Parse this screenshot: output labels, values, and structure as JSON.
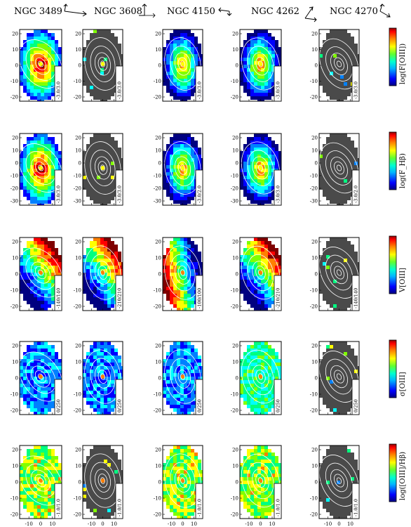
{
  "galaxies": [
    "NGC 3489",
    "NGC 3608",
    "NGC 4150",
    "NGC 4262",
    "NGC 4270"
  ],
  "quantity_labels": [
    "log(F[OIII])",
    "log(F_Hβ)",
    "V[OIII]",
    "σ[OIII]",
    "log([OIII]/Hβ)"
  ],
  "colors": {
    "masked": "#4a4a4a",
    "contour": "#ffffff",
    "frame": "#000000"
  },
  "colormap": [
    "#000080",
    "#0000ff",
    "#0080ff",
    "#00ffff",
    "#00ff80",
    "#80ff00",
    "#ffff00",
    "#ff8000",
    "#ff0000",
    "#800000"
  ],
  "chart_data": [
    {
      "type": "heatmap",
      "title": "",
      "columns": [
        "NGC 3489",
        "NGC 3608",
        "NGC 4150",
        "NGC 4262",
        "NGC 4270"
      ],
      "rows": [
        "log(F[OIII])",
        "log(F_Hβ)",
        "V[OIII]",
        "σ[OIII]",
        "log([OIII]/Hβ)"
      ],
      "range_labels": [
        [
          "-3.0/3.0",
          "-3.0/3.0",
          "-3.0/3.0",
          "-3.0/3.0",
          "-3.0/3.0"
        ],
        [
          "-3.0/3.0",
          "-3.0/3.0",
          "-3.0/2.0",
          "-3.0/3.0",
          "-3.0/2.0"
        ],
        [
          "-140/140",
          "-210/210",
          "-100/100",
          "-210/210",
          "-140/140"
        ],
        [
          "0/250",
          "0/250",
          "0/250",
          "0/250",
          "0/250"
        ],
        [
          "-1.0/1.0",
          "-1.0/1.0",
          "-1.0/1.0",
          "-1.0/1.0",
          "-1.0/1.0"
        ]
      ],
      "ylim": [
        [
          -30,
          20
        ],
        [
          -30,
          20
        ],
        [
          -20,
          20
        ],
        [
          -20,
          20
        ],
        [
          -20,
          20
        ]
      ],
      "yticks": [
        [
          "20",
          "10",
          "0",
          "-10",
          "-20"
        ],
        [
          "20",
          "10",
          "0",
          "-10",
          "-20",
          "-30"
        ],
        [
          "20",
          "10",
          "0",
          "-10",
          "-20"
        ],
        [
          "20",
          "10",
          "0",
          "-10",
          "-20"
        ],
        [
          "20",
          "10",
          "0",
          "-10",
          "-20"
        ]
      ],
      "xticks": [
        [
          "-10",
          "0",
          "10"
        ],
        [
          "-10",
          "0",
          "10"
        ],
        [
          "-10",
          "0",
          "10"
        ],
        [
          "-10",
          "0",
          "10"
        ],
        [
          "-10",
          "0",
          "10"
        ]
      ],
      "grid": false
    }
  ]
}
